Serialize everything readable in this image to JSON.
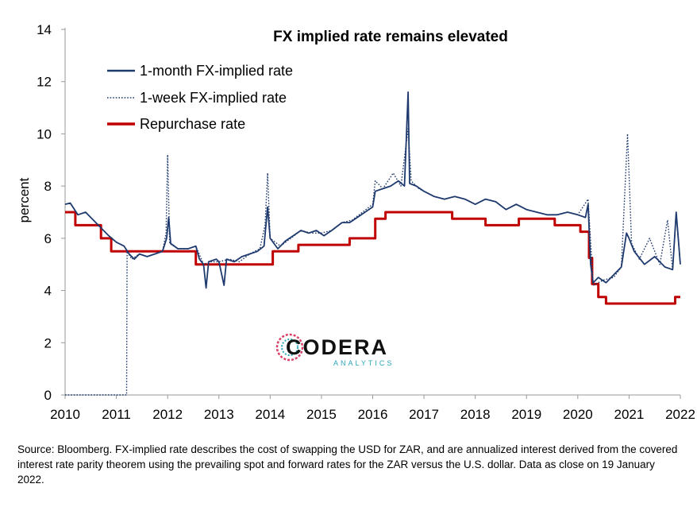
{
  "chart_data": {
    "type": "line",
    "title": "FX implied rate remains elevated",
    "ylabel": "percent",
    "xlabel": "",
    "xlim": [
      2010,
      2022
    ],
    "ylim": [
      0,
      14
    ],
    "x_ticks": [
      "2010",
      "2011",
      "2012",
      "2013",
      "2014",
      "2015",
      "2016",
      "2017",
      "2018",
      "2019",
      "2020",
      "2021",
      "2022"
    ],
    "y_ticks": [
      "0",
      "2",
      "4",
      "6",
      "8",
      "10",
      "12",
      "14"
    ],
    "legend_position": "top-left",
    "series": [
      {
        "name": "1-month FX-implied rate",
        "style": "solid",
        "color": "#1f3a6e",
        "points": [
          [
            2010.0,
            7.3
          ],
          [
            2010.1,
            7.35
          ],
          [
            2010.25,
            6.9
          ],
          [
            2010.4,
            7.0
          ],
          [
            2010.55,
            6.7
          ],
          [
            2010.7,
            6.4
          ],
          [
            2010.85,
            6.1
          ],
          [
            2011.0,
            5.85
          ],
          [
            2011.15,
            5.7
          ],
          [
            2011.25,
            5.4
          ],
          [
            2011.35,
            5.2
          ],
          [
            2011.45,
            5.4
          ],
          [
            2011.6,
            5.3
          ],
          [
            2011.75,
            5.4
          ],
          [
            2011.9,
            5.5
          ],
          [
            2011.98,
            6.0
          ],
          [
            2012.02,
            6.8
          ],
          [
            2012.06,
            5.8
          ],
          [
            2012.2,
            5.6
          ],
          [
            2012.4,
            5.6
          ],
          [
            2012.55,
            5.7
          ],
          [
            2012.62,
            5.2
          ],
          [
            2012.7,
            5.0
          ],
          [
            2012.75,
            4.1
          ],
          [
            2012.8,
            5.1
          ],
          [
            2012.95,
            5.2
          ],
          [
            2013.0,
            5.1
          ],
          [
            2013.1,
            4.2
          ],
          [
            2013.15,
            5.2
          ],
          [
            2013.3,
            5.1
          ],
          [
            2013.45,
            5.3
          ],
          [
            2013.6,
            5.4
          ],
          [
            2013.75,
            5.5
          ],
          [
            2013.88,
            5.7
          ],
          [
            2013.95,
            7.2
          ],
          [
            2014.0,
            6.0
          ],
          [
            2014.15,
            5.6
          ],
          [
            2014.3,
            5.9
          ],
          [
            2014.45,
            6.1
          ],
          [
            2014.6,
            6.3
          ],
          [
            2014.75,
            6.2
          ],
          [
            2014.9,
            6.3
          ],
          [
            2015.05,
            6.1
          ],
          [
            2015.2,
            6.3
          ],
          [
            2015.4,
            6.6
          ],
          [
            2015.55,
            6.6
          ],
          [
            2015.7,
            6.8
          ],
          [
            2015.85,
            7.0
          ],
          [
            2016.0,
            7.2
          ],
          [
            2016.05,
            7.8
          ],
          [
            2016.2,
            7.9
          ],
          [
            2016.35,
            8.0
          ],
          [
            2016.5,
            8.2
          ],
          [
            2016.62,
            8.0
          ],
          [
            2016.69,
            11.6
          ],
          [
            2016.72,
            8.1
          ],
          [
            2016.85,
            8.0
          ],
          [
            2017.0,
            7.8
          ],
          [
            2017.2,
            7.6
          ],
          [
            2017.4,
            7.5
          ],
          [
            2017.6,
            7.6
          ],
          [
            2017.8,
            7.5
          ],
          [
            2018.0,
            7.3
          ],
          [
            2018.2,
            7.5
          ],
          [
            2018.4,
            7.4
          ],
          [
            2018.6,
            7.1
          ],
          [
            2018.8,
            7.3
          ],
          [
            2019.0,
            7.1
          ],
          [
            2019.2,
            7.0
          ],
          [
            2019.4,
            6.9
          ],
          [
            2019.6,
            6.9
          ],
          [
            2019.8,
            7.0
          ],
          [
            2020.0,
            6.9
          ],
          [
            2020.15,
            6.8
          ],
          [
            2020.2,
            7.3
          ],
          [
            2020.25,
            5.0
          ],
          [
            2020.3,
            4.3
          ],
          [
            2020.4,
            4.5
          ],
          [
            2020.55,
            4.3
          ],
          [
            2020.7,
            4.6
          ],
          [
            2020.85,
            4.9
          ],
          [
            2020.95,
            6.2
          ],
          [
            2021.0,
            6.0
          ],
          [
            2021.1,
            5.5
          ],
          [
            2021.3,
            5.0
          ],
          [
            2021.5,
            5.3
          ],
          [
            2021.7,
            4.9
          ],
          [
            2021.85,
            4.8
          ],
          [
            2021.92,
            7.0
          ],
          [
            2022.0,
            5.0
          ]
        ]
      },
      {
        "name": "1-week FX-implied rate",
        "style": "dotted",
        "color": "#1f3a6e",
        "points": [
          [
            2010.0,
            0.0
          ],
          [
            2011.2,
            0.0
          ],
          [
            2011.21,
            5.5
          ],
          [
            2011.3,
            5.2
          ],
          [
            2011.45,
            5.4
          ],
          [
            2011.6,
            5.3
          ],
          [
            2011.75,
            5.4
          ],
          [
            2011.9,
            5.5
          ],
          [
            2011.97,
            6.2
          ],
          [
            2012.0,
            9.2
          ],
          [
            2012.04,
            5.8
          ],
          [
            2012.2,
            5.6
          ],
          [
            2012.4,
            5.6
          ],
          [
            2012.55,
            5.7
          ],
          [
            2012.7,
            5.0
          ],
          [
            2012.85,
            5.1
          ],
          [
            2013.0,
            5.1
          ],
          [
            2013.2,
            5.2
          ],
          [
            2013.4,
            5.1
          ],
          [
            2013.6,
            5.4
          ],
          [
            2013.8,
            5.6
          ],
          [
            2013.9,
            6.5
          ],
          [
            2013.95,
            8.5
          ],
          [
            2014.0,
            6.0
          ],
          [
            2014.2,
            5.7
          ],
          [
            2014.4,
            6.0
          ],
          [
            2014.6,
            6.3
          ],
          [
            2014.8,
            6.2
          ],
          [
            2015.0,
            6.2
          ],
          [
            2015.2,
            6.3
          ],
          [
            2015.4,
            6.6
          ],
          [
            2015.6,
            6.7
          ],
          [
            2015.8,
            7.0
          ],
          [
            2016.0,
            7.3
          ],
          [
            2016.05,
            8.2
          ],
          [
            2016.2,
            7.9
          ],
          [
            2016.4,
            8.5
          ],
          [
            2016.55,
            8.0
          ],
          [
            2016.69,
            10.2
          ],
          [
            2016.75,
            8.2
          ],
          [
            2016.9,
            7.9
          ],
          [
            2017.0,
            7.8
          ],
          [
            2017.2,
            7.6
          ],
          [
            2017.4,
            7.5
          ],
          [
            2017.6,
            7.6
          ],
          [
            2017.8,
            7.5
          ],
          [
            2018.0,
            7.3
          ],
          [
            2018.2,
            7.5
          ],
          [
            2018.4,
            7.4
          ],
          [
            2018.6,
            7.1
          ],
          [
            2018.8,
            7.3
          ],
          [
            2019.0,
            7.1
          ],
          [
            2019.2,
            7.0
          ],
          [
            2019.4,
            6.9
          ],
          [
            2019.6,
            6.9
          ],
          [
            2019.8,
            7.0
          ],
          [
            2020.0,
            6.9
          ],
          [
            2020.2,
            7.5
          ],
          [
            2020.3,
            4.2
          ],
          [
            2020.5,
            4.4
          ],
          [
            2020.7,
            4.5
          ],
          [
            2020.85,
            4.9
          ],
          [
            2020.97,
            10.0
          ],
          [
            2021.05,
            5.8
          ],
          [
            2021.2,
            5.2
          ],
          [
            2021.4,
            6.0
          ],
          [
            2021.6,
            5.0
          ],
          [
            2021.75,
            6.7
          ],
          [
            2021.85,
            4.8
          ],
          [
            2021.92,
            7.0
          ],
          [
            2022.0,
            5.0
          ]
        ]
      },
      {
        "name": "Repurchase rate",
        "style": "step",
        "color": "#c00000",
        "points": [
          [
            2010.0,
            7.0
          ],
          [
            2010.2,
            7.0
          ],
          [
            2010.2,
            6.5
          ],
          [
            2010.7,
            6.5
          ],
          [
            2010.7,
            6.0
          ],
          [
            2010.9,
            6.0
          ],
          [
            2010.9,
            5.5
          ],
          [
            2012.55,
            5.5
          ],
          [
            2012.55,
            5.0
          ],
          [
            2014.05,
            5.0
          ],
          [
            2014.05,
            5.5
          ],
          [
            2014.55,
            5.5
          ],
          [
            2014.55,
            5.75
          ],
          [
            2015.55,
            5.75
          ],
          [
            2015.55,
            6.0
          ],
          [
            2016.05,
            6.0
          ],
          [
            2016.05,
            6.75
          ],
          [
            2016.25,
            6.75
          ],
          [
            2016.25,
            7.0
          ],
          [
            2017.55,
            7.0
          ],
          [
            2017.55,
            6.75
          ],
          [
            2018.2,
            6.75
          ],
          [
            2018.2,
            6.5
          ],
          [
            2018.85,
            6.5
          ],
          [
            2018.85,
            6.75
          ],
          [
            2019.55,
            6.75
          ],
          [
            2019.55,
            6.5
          ],
          [
            2020.05,
            6.5
          ],
          [
            2020.05,
            6.25
          ],
          [
            2020.22,
            6.25
          ],
          [
            2020.22,
            5.25
          ],
          [
            2020.28,
            5.25
          ],
          [
            2020.28,
            4.25
          ],
          [
            2020.4,
            4.25
          ],
          [
            2020.4,
            3.75
          ],
          [
            2020.55,
            3.75
          ],
          [
            2020.55,
            3.5
          ],
          [
            2021.9,
            3.5
          ],
          [
            2021.9,
            3.75
          ],
          [
            2022.0,
            3.75
          ]
        ]
      }
    ],
    "source": "Source: Bloomberg. FX-implied rate describes the cost of swapping the USD for ZAR, and are annualized interest derived from the covered interest rate parity theorem using the prevailing spot and forward rates for the ZAR versus the U.S. dollar. Data as close on 19 January 2022.",
    "watermark": {
      "main": "CODERA",
      "sub": "ANALYTICS"
    }
  }
}
